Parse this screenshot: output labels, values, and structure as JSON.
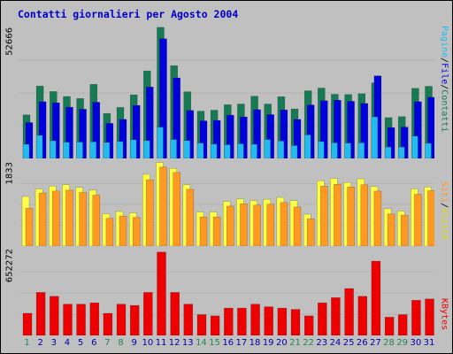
{
  "title": "Contatti giornalieri per Agosto 2004",
  "axis_max": {
    "top": "52666",
    "middle": "1833",
    "bottom": "652272"
  },
  "legends": {
    "top": [
      "Pagine",
      "/",
      "File",
      "/",
      "Contatti"
    ],
    "middle": [
      "Siti",
      "/",
      "Visite"
    ],
    "bottom": [
      "KBytes"
    ]
  },
  "colors": {
    "contatti": "#167a55",
    "file": "#0000dd",
    "pagine": "#22bbee",
    "visite": "#ffff44",
    "siti": "#ff9922",
    "kbytes": "#ee0000",
    "weekday_label": "#0000aa",
    "weekend_label": "#228855",
    "title": "#0000cc"
  },
  "chart_data": [
    {
      "type": "bar",
      "name": "top",
      "ylim": [
        0,
        52666
      ],
      "categories": [
        "1",
        "2",
        "3",
        "4",
        "5",
        "6",
        "7",
        "8",
        "9",
        "10",
        "11",
        "12",
        "13",
        "14",
        "15",
        "16",
        "17",
        "18",
        "19",
        "20",
        "21",
        "22",
        "23",
        "24",
        "25",
        "26",
        "27",
        "28",
        "29",
        "30",
        "31"
      ],
      "series": [
        {
          "name": "Contatti",
          "values": [
            17500,
            29100,
            26900,
            24900,
            24100,
            29800,
            18100,
            20500,
            25600,
            35200,
            52700,
            37300,
            26800,
            19000,
            19400,
            21600,
            21900,
            25000,
            21900,
            24800,
            19900,
            27200,
            28300,
            25800,
            25700,
            26000,
            30400,
            16400,
            16800,
            28200,
            29000
          ]
        },
        {
          "name": "File",
          "values": [
            14400,
            22800,
            22400,
            20600,
            19800,
            22600,
            14100,
            15700,
            21300,
            28700,
            48100,
            32400,
            19300,
            15100,
            15300,
            17400,
            16700,
            19600,
            17600,
            19500,
            15700,
            21500,
            23200,
            23400,
            23000,
            22100,
            33200,
            12400,
            12600,
            22800,
            24600
          ]
        },
        {
          "name": "Pagine",
          "values": [
            5700,
            9300,
            7100,
            6500,
            6600,
            6700,
            6400,
            6800,
            7500,
            7200,
            12600,
            7600,
            7200,
            6200,
            5800,
            5500,
            5900,
            5700,
            7600,
            7000,
            5200,
            9500,
            6800,
            6300,
            6200,
            6300,
            16700,
            4600,
            4600,
            9000,
            6100
          ]
        }
      ]
    },
    {
      "type": "bar",
      "name": "middle",
      "ylim": [
        0,
        1833
      ],
      "categories": [
        "1",
        "2",
        "3",
        "4",
        "5",
        "6",
        "7",
        "8",
        "9",
        "10",
        "11",
        "12",
        "13",
        "14",
        "15",
        "16",
        "17",
        "18",
        "19",
        "20",
        "21",
        "22",
        "23",
        "24",
        "25",
        "26",
        "27",
        "28",
        "29",
        "30",
        "31"
      ],
      "series": [
        {
          "name": "Visite",
          "values": [
            1090,
            1260,
            1320,
            1350,
            1290,
            1230,
            710,
            760,
            730,
            1580,
            1840,
            1710,
            1350,
            750,
            750,
            980,
            1040,
            1000,
            1030,
            1070,
            1000,
            700,
            1440,
            1490,
            1400,
            1480,
            1310,
            820,
            770,
            1260,
            1300
          ]
        },
        {
          "name": "Siti",
          "values": [
            830,
            1170,
            1210,
            1230,
            1180,
            1120,
            610,
            660,
            630,
            1460,
            1740,
            1620,
            1250,
            640,
            640,
            880,
            930,
            900,
            920,
            960,
            860,
            600,
            1320,
            1360,
            1300,
            1350,
            1210,
            710,
            680,
            1140,
            1220
          ]
        }
      ]
    },
    {
      "type": "bar",
      "name": "bottom",
      "ylim": [
        0,
        652272
      ],
      "categories": [
        "1",
        "2",
        "3",
        "4",
        "5",
        "6",
        "7",
        "8",
        "9",
        "10",
        "11",
        "12",
        "13",
        "14",
        "15",
        "16",
        "17",
        "18",
        "19",
        "20",
        "21",
        "22",
        "23",
        "24",
        "25",
        "26",
        "27",
        "28",
        "29",
        "30",
        "31"
      ],
      "series": [
        {
          "name": "KBytes",
          "values": [
            170000,
            330000,
            300000,
            240000,
            240000,
            250000,
            170000,
            240000,
            230000,
            330000,
            640000,
            330000,
            240000,
            160000,
            150000,
            210000,
            210000,
            240000,
            220000,
            210000,
            200000,
            150000,
            250000,
            290000,
            360000,
            300000,
            570000,
            140000,
            160000,
            270000,
            280000
          ]
        }
      ]
    }
  ],
  "x_labels": [
    {
      "label": "1",
      "weekend": true
    },
    {
      "label": "2",
      "weekend": false
    },
    {
      "label": "3",
      "weekend": false
    },
    {
      "label": "4",
      "weekend": false
    },
    {
      "label": "5",
      "weekend": false
    },
    {
      "label": "6",
      "weekend": false
    },
    {
      "label": "7",
      "weekend": true
    },
    {
      "label": "8",
      "weekend": true
    },
    {
      "label": "9",
      "weekend": false
    },
    {
      "label": "10",
      "weekend": false
    },
    {
      "label": "11",
      "weekend": false
    },
    {
      "label": "12",
      "weekend": false
    },
    {
      "label": "13",
      "weekend": false
    },
    {
      "label": "14",
      "weekend": true
    },
    {
      "label": "15",
      "weekend": true
    },
    {
      "label": "16",
      "weekend": false
    },
    {
      "label": "17",
      "weekend": false
    },
    {
      "label": "18",
      "weekend": false
    },
    {
      "label": "19",
      "weekend": false
    },
    {
      "label": "20",
      "weekend": false
    },
    {
      "label": "21",
      "weekend": true
    },
    {
      "label": "22",
      "weekend": true
    },
    {
      "label": "23",
      "weekend": false
    },
    {
      "label": "24",
      "weekend": false
    },
    {
      "label": "25",
      "weekend": false
    },
    {
      "label": "26",
      "weekend": false
    },
    {
      "label": "27",
      "weekend": false
    },
    {
      "label": "28",
      "weekend": true
    },
    {
      "label": "29",
      "weekend": true
    },
    {
      "label": "30",
      "weekend": false
    },
    {
      "label": "31",
      "weekend": false
    }
  ]
}
